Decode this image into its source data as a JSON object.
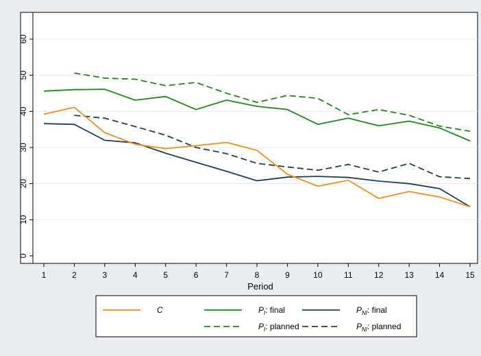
{
  "chart_data": {
    "type": "line",
    "xlabel": "Period",
    "ylabel": "",
    "x": [
      1,
      2,
      3,
      4,
      5,
      6,
      7,
      8,
      9,
      10,
      11,
      12,
      13,
      14,
      15
    ],
    "xlim": [
      1,
      15
    ],
    "ylim": [
      0,
      65
    ],
    "xticks": [
      "1",
      "2",
      "3",
      "4",
      "5",
      "6",
      "7",
      "8",
      "9",
      "10",
      "11",
      "12",
      "13",
      "14",
      "15"
    ],
    "yticks": [
      "0",
      "10",
      "20",
      "30",
      "40",
      "50",
      "60"
    ],
    "grid": "horizontal",
    "legend_position": "bottom",
    "series": [
      {
        "name": "C",
        "legend_main": "C",
        "legend_sub": "",
        "legend_suffix": "",
        "color": "#f28e1c",
        "dash": "solid",
        "values": [
          39.2,
          41.1,
          34.1,
          30.9,
          29.7,
          30.5,
          31.4,
          29.2,
          22.6,
          19.3,
          20.9,
          15.9,
          17.8,
          16.3,
          13.6
        ]
      },
      {
        "name": "PI: final",
        "legend_main": "P",
        "legend_sub": "I",
        "legend_suffix": ":  final",
        "color": "#1a8a1a",
        "dash": "solid",
        "values": [
          45.6,
          46.0,
          46.1,
          43.1,
          44.1,
          40.5,
          43.1,
          41.4,
          40.5,
          36.4,
          38.1,
          36.0,
          37.3,
          35.4,
          31.8
        ]
      },
      {
        "name": "PNI: final",
        "legend_main": "P",
        "legend_sub": "NI",
        "legend_suffix": ":  final",
        "color": "#1f3d5c",
        "dash": "solid",
        "values": [
          36.6,
          36.4,
          32.0,
          31.3,
          28.4,
          25.9,
          23.4,
          20.8,
          21.8,
          22.0,
          21.7,
          20.7,
          20.0,
          18.6,
          13.6
        ]
      },
      {
        "name": "PI: planned",
        "legend_main": "P",
        "legend_sub": "I",
        "legend_suffix": ":  planned",
        "color": "#1a8a1a",
        "dash": "dashed",
        "values": [
          null,
          50.6,
          49.2,
          48.9,
          47.1,
          48.0,
          45.0,
          42.5,
          44.4,
          43.6,
          39.1,
          40.5,
          38.9,
          35.9,
          34.5
        ]
      },
      {
        "name": "PNI: planned",
        "legend_main": "P",
        "legend_sub": "NI",
        "legend_suffix": ":  planned",
        "color": "#1f3d5c",
        "dash": "dashed",
        "values": [
          null,
          38.9,
          38.1,
          35.8,
          33.4,
          30.0,
          28.3,
          25.6,
          24.6,
          23.7,
          25.3,
          23.2,
          25.6,
          21.9,
          21.4
        ]
      }
    ]
  }
}
